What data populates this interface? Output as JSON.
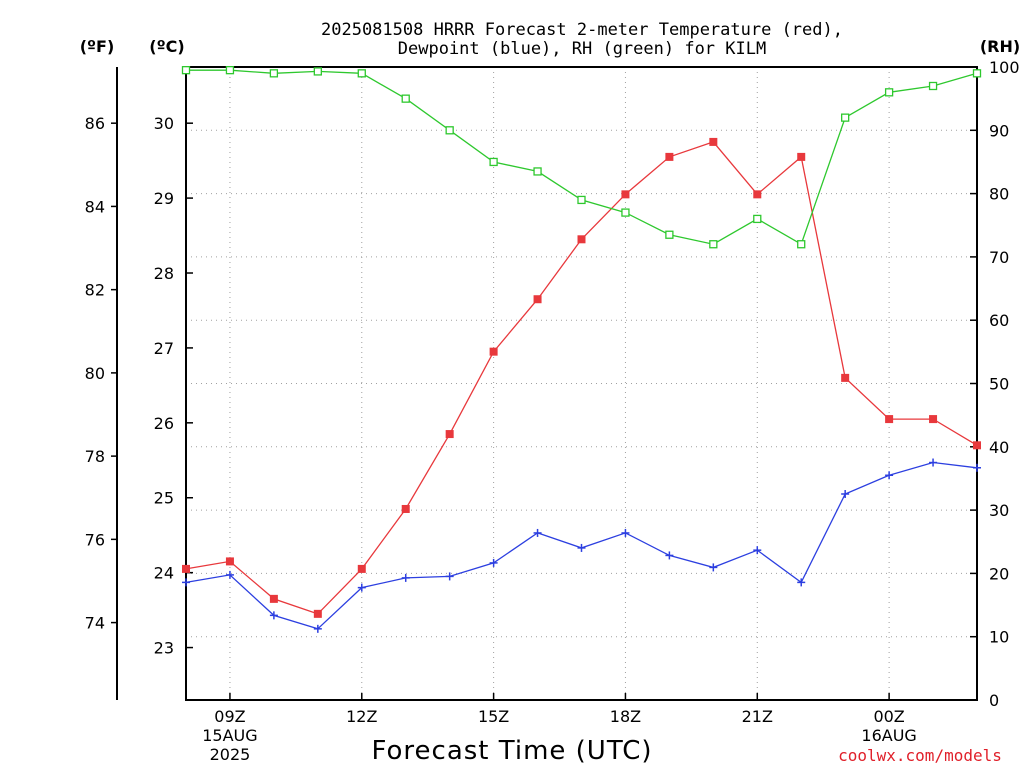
{
  "chart_data": {
    "type": "line",
    "title_line1": "2025081508 HRRR Forecast 2-meter Temperature (red),",
    "title_line2": "Dewpoint (blue), RH (green) for KILM",
    "xlabel": "Forecast Time (UTC)",
    "credit": "coolwx.com/models",
    "unit_left_f": "(ºF)",
    "unit_left_c": "(ºC)",
    "unit_right": "(RH)",
    "x_hours": [
      8,
      9,
      10,
      11,
      12,
      13,
      14,
      15,
      16,
      17,
      18,
      19,
      20,
      21,
      22,
      23,
      24,
      25,
      26
    ],
    "x_ticks": [
      {
        "hour": 9,
        "lines": [
          "09Z",
          "15AUG",
          "2025"
        ]
      },
      {
        "hour": 12,
        "lines": [
          "12Z"
        ]
      },
      {
        "hour": 15,
        "lines": [
          "15Z"
        ]
      },
      {
        "hour": 18,
        "lines": [
          "18Z"
        ]
      },
      {
        "hour": 21,
        "lines": [
          "21Z"
        ]
      },
      {
        "hour": 24,
        "lines": [
          "00Z",
          "16AUG"
        ]
      }
    ],
    "xlim": [
      8,
      26
    ],
    "c_ylim": [
      22.3,
      30.75
    ],
    "c_ticks": [
      23,
      24,
      25,
      26,
      27,
      28,
      29,
      30
    ],
    "f_ticks": [
      74,
      76,
      78,
      80,
      82,
      84,
      86
    ],
    "rh_ylim": [
      0,
      100
    ],
    "rh_ticks": [
      0,
      10,
      20,
      30,
      40,
      50,
      60,
      70,
      80,
      90,
      100
    ],
    "grid": true,
    "series": [
      {
        "name": "Temperature",
        "axis": "c",
        "color": "#e8383c",
        "marker": "filled-square",
        "values": [
          24.05,
          24.15,
          23.65,
          23.45,
          24.05,
          24.85,
          25.85,
          26.95,
          27.65,
          28.45,
          29.05,
          29.55,
          29.75,
          29.05,
          29.55,
          26.6,
          26.05,
          26.05,
          25.7
        ]
      },
      {
        "name": "Dewpoint",
        "axis": "c",
        "color": "#2c3fe0",
        "marker": "plus",
        "values": [
          23.87,
          23.97,
          23.43,
          23.25,
          23.8,
          23.93,
          23.95,
          24.13,
          24.53,
          24.33,
          24.53,
          24.23,
          24.07,
          24.3,
          23.87,
          25.05,
          25.3,
          25.47,
          25.4
        ]
      },
      {
        "name": "RH",
        "axis": "rh",
        "color": "#2ec82e",
        "marker": "open-square",
        "values": [
          99.5,
          99.5,
          99,
          99.3,
          99,
          95,
          90,
          85,
          83.5,
          79,
          77,
          73.5,
          72,
          76,
          72,
          92,
          96,
          97,
          99
        ]
      }
    ]
  }
}
